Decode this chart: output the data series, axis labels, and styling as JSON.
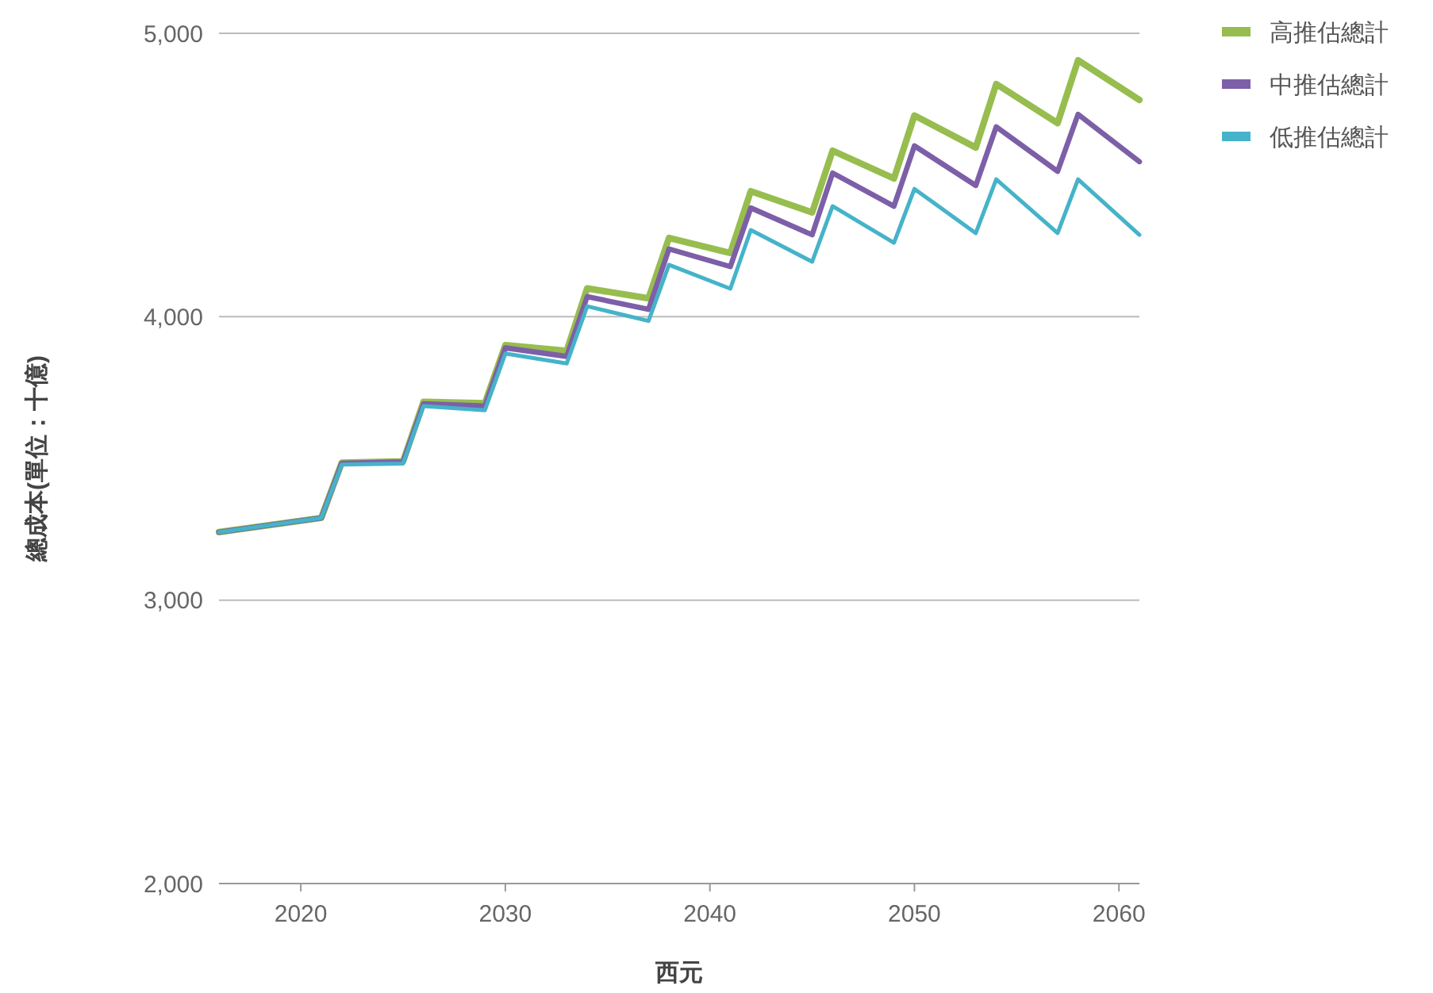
{
  "chart_data": {
    "type": "line",
    "xlabel": "西元",
    "ylabel": "總成本(單位：十億)",
    "x": [
      2016,
      2021,
      2022,
      2025,
      2026,
      2029,
      2030,
      2033,
      2034,
      2037,
      2038,
      2041,
      2042,
      2045,
      2046,
      2049,
      2050,
      2053,
      2054,
      2057,
      2058,
      2061
    ],
    "series": [
      {
        "name": "高推估總計",
        "color": "#97bd4f",
        "values": [
          3240,
          3290,
          3485,
          3490,
          3700,
          3695,
          3900,
          3880,
          4100,
          4065,
          4278,
          4225,
          4443,
          4368,
          4586,
          4488,
          4710,
          4597,
          4821,
          4683,
          4905,
          4765
        ]
      },
      {
        "name": "中推估總計",
        "color": "#7d5fa8",
        "values": [
          3240,
          3290,
          3483,
          3488,
          3693,
          3685,
          3890,
          3860,
          4071,
          4026,
          4239,
          4177,
          4384,
          4289,
          4507,
          4390,
          4603,
          4463,
          4670,
          4513,
          4714,
          4547
        ]
      },
      {
        "name": "低推估總計",
        "color": "#45b3c9",
        "values": [
          3240,
          3290,
          3478,
          3482,
          3685,
          3670,
          3870,
          3835,
          4037,
          3985,
          4183,
          4099,
          4306,
          4194,
          4390,
          4261,
          4451,
          4295,
          4485,
          4295,
          4485,
          4289
        ]
      }
    ],
    "xlim": [
      2016,
      2061
    ],
    "xticks": [
      2020,
      2030,
      2040,
      2050,
      2060
    ],
    "ylim": [
      2000,
      5000
    ],
    "yticks": [
      {
        "value": 2000,
        "label": "2,000"
      },
      {
        "value": 3000,
        "label": "3,000"
      },
      {
        "value": 4000,
        "label": "4,000"
      },
      {
        "value": 5000,
        "label": "5,000"
      }
    ],
    "grid": "y",
    "legend": "top right",
    "marker": "none",
    "line_style": "solid"
  }
}
